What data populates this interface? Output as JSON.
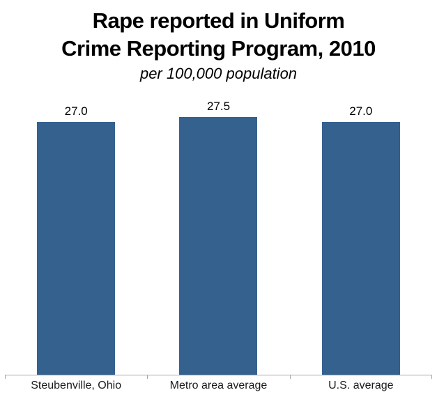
{
  "chart_data": {
    "type": "bar",
    "title": "Rape reported in Uniform Crime Reporting Program, 2010",
    "title_lines": [
      "Rape reported in Uniform",
      "Crime Reporting Program, 2010"
    ],
    "subtitle": "per 100,000 population",
    "categories": [
      "Steubenville, Ohio",
      "Metro area average",
      "U.S. average"
    ],
    "values": [
      27.0,
      27.5,
      27.0
    ],
    "value_labels": [
      "27.0",
      "27.5",
      "27.0"
    ],
    "xlabel": "",
    "ylabel": "",
    "ylim": [
      0,
      28
    ],
    "grid": false,
    "legend": "none",
    "bar_color": "#35618F",
    "axis_color": "#A6A6A6",
    "text_color": "#000000"
  }
}
